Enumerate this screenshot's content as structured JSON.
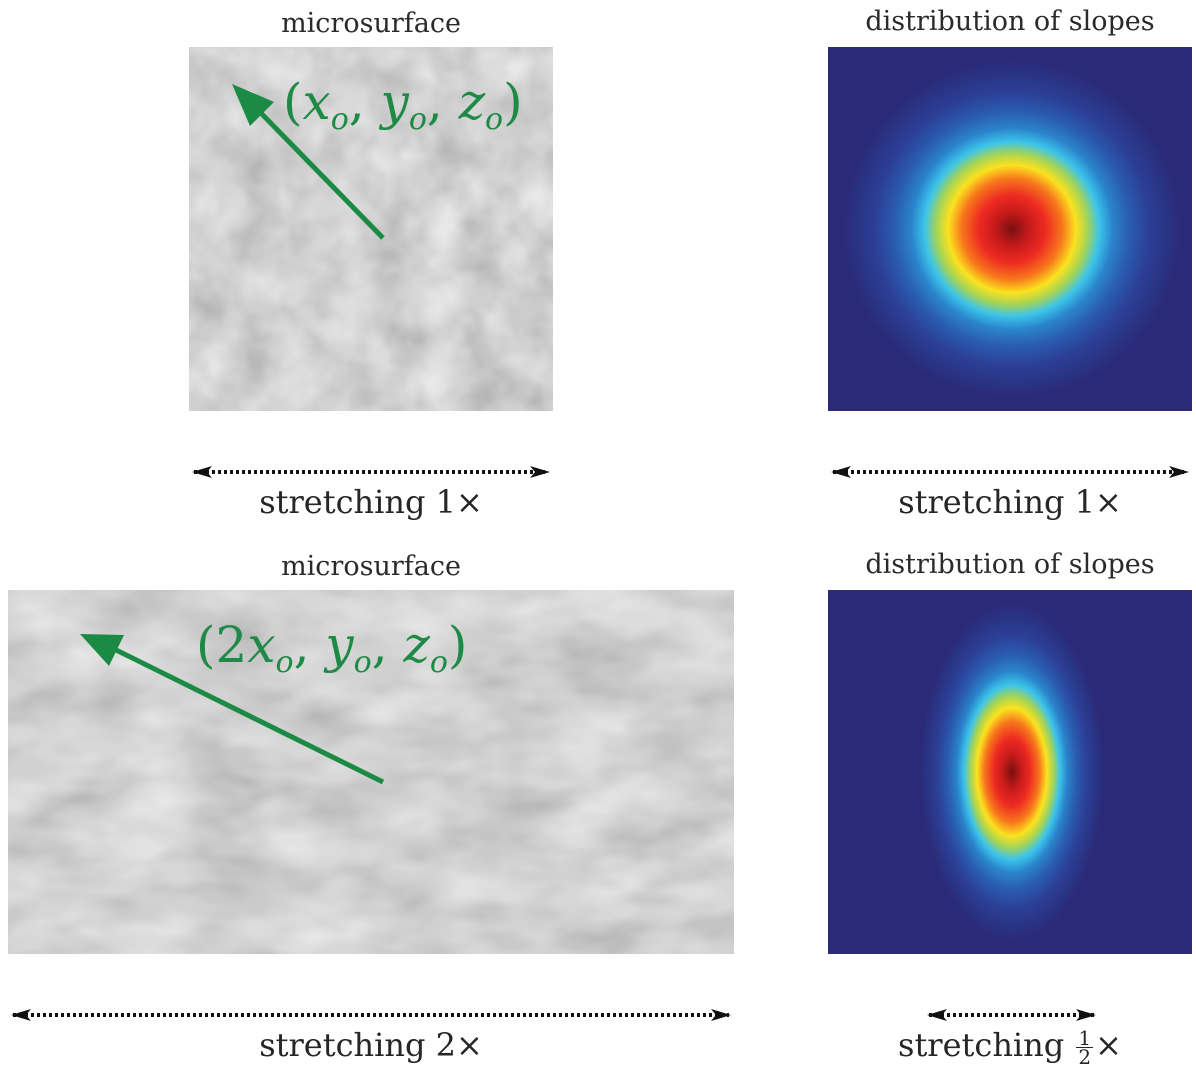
{
  "top": {
    "surface_title": "microsurface",
    "slopes_title": "distribution of slopes",
    "coord": {
      "open": "(",
      "x": "x",
      "xsub": "o",
      "sep1": ", ",
      "y": "y",
      "ysub": "o",
      "sep2": ", ",
      "z": "z",
      "zsub": "o",
      "close": ")"
    },
    "stretch_surface": "stretching 1×",
    "stretch_slopes": "stretching 1×"
  },
  "bottom": {
    "surface_title": "microsurface",
    "slopes_title": "distribution of slopes",
    "coord": {
      "open": "(",
      "factor": "2",
      "x": "x",
      "xsub": "o",
      "sep1": ", ",
      "y": "y",
      "ysub": "o",
      "sep2": ", ",
      "z": "z",
      "zsub": "o",
      "close": ")"
    },
    "stretch_surface": "stretching 2×",
    "stretch_slopes_prefix": "stretching ",
    "stretch_slopes_num": "1",
    "stretch_slopes_den": "2",
    "stretch_slopes_suffix": "×"
  },
  "colors": {
    "arrow_green": "#1b8a44",
    "heat_background": "#2a2a7a",
    "dim_arrow": "#111111"
  }
}
